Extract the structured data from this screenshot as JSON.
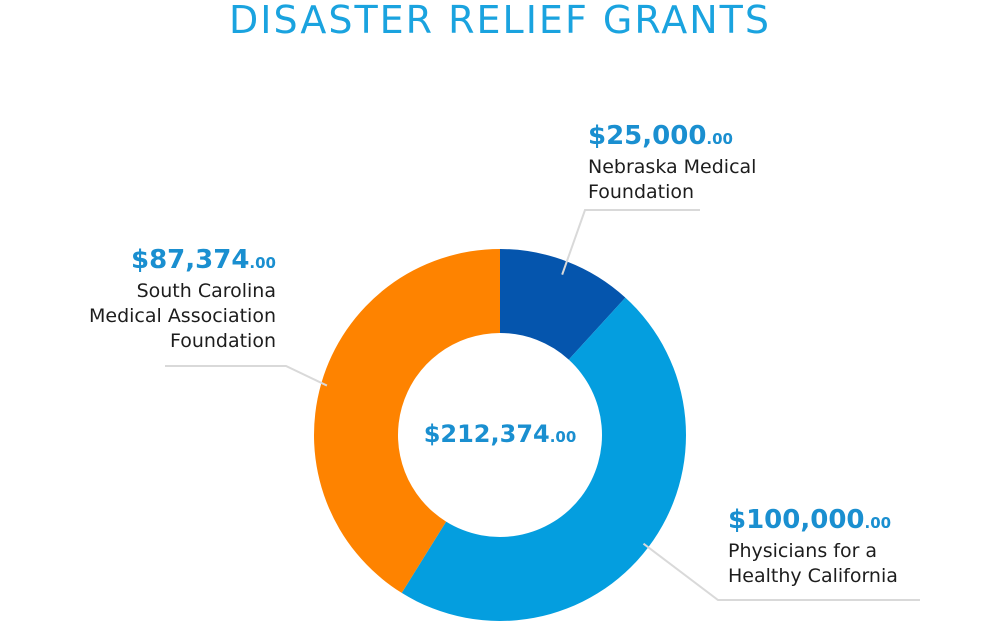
{
  "colors": {
    "title": "#1aa3df",
    "amount": "#1a8fd0",
    "leader": "#d9d9d9"
  },
  "chart_data": {
    "type": "pie",
    "title": "DISASTER RELIEF GRANTS",
    "center_label": {
      "amount": "$212,374",
      "cents": ".00"
    },
    "total": 212374,
    "slices": [
      {
        "name": "Nebraska Medical Foundation",
        "name_lines": [
          "Nebraska Medical",
          "Foundation"
        ],
        "value": 25000,
        "amount": "$25,000",
        "cents": ".00",
        "color": "#0555ad"
      },
      {
        "name": "Physicians for a Healthy California",
        "name_lines": [
          "Physicians for a",
          "Healthy California"
        ],
        "value": 100000,
        "amount": "$100,000",
        "cents": ".00",
        "color": "#049edf"
      },
      {
        "name": "South Carolina Medical Association Foundation",
        "name_lines": [
          "South Carolina",
          "Medical Association",
          "Foundation"
        ],
        "value": 87374,
        "amount": "$87,374",
        "cents": ".00",
        "color": "#fe8300"
      }
    ]
  }
}
